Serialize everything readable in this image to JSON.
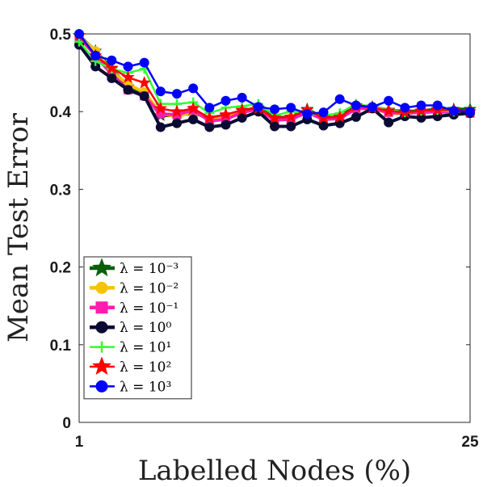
{
  "chart_data": {
    "type": "line",
    "xlabel": "Labelled Nodes (%)",
    "ylabel": "Mean Test Error",
    "xlim": [
      1,
      25
    ],
    "ylim": [
      0,
      0.5
    ],
    "x_tick_labels": [
      "1",
      "25"
    ],
    "y_tick_labels": [
      "0",
      "0.1",
      "0.2",
      "0.3",
      "0.4",
      "0.5"
    ],
    "grid": false,
    "legend_position": "bottom-left",
    "x": [
      1,
      2,
      3,
      4,
      5,
      6,
      7,
      8,
      9,
      10,
      11,
      12,
      13,
      14,
      15,
      16,
      17,
      18,
      19,
      20,
      21,
      22,
      23,
      24,
      25
    ],
    "series": [
      {
        "name": "λ = 10⁻³",
        "color": "#0b5e0b",
        "marker": "star",
        "values": [
          0.498,
          0.478,
          0.455,
          0.432,
          0.423,
          0.395,
          0.395,
          0.398,
          0.392,
          0.395,
          0.401,
          0.405,
          0.392,
          0.393,
          0.403,
          0.392,
          0.393,
          0.408,
          0.406,
          0.402,
          0.4,
          0.401,
          0.403,
          0.403,
          0.403
        ]
      },
      {
        "name": "λ = 10⁻²",
        "color": "#f5c400",
        "marker": "circle",
        "values": [
          0.497,
          0.478,
          0.452,
          0.435,
          0.425,
          0.398,
          0.393,
          0.4,
          0.39,
          0.393,
          0.4,
          0.404,
          0.39,
          0.392,
          0.4,
          0.39,
          0.392,
          0.405,
          0.404,
          0.398,
          0.397,
          0.4,
          0.401,
          0.4,
          0.4
        ]
      },
      {
        "name": "λ = 10⁻¹",
        "color": "#ff1cae",
        "marker": "square",
        "values": [
          0.496,
          0.472,
          0.448,
          0.428,
          0.42,
          0.397,
          0.396,
          0.402,
          0.388,
          0.39,
          0.399,
          0.403,
          0.389,
          0.39,
          0.399,
          0.39,
          0.391,
          0.404,
          0.404,
          0.399,
          0.398,
          0.399,
          0.4,
          0.399,
          0.398
        ]
      },
      {
        "name": "λ = 10⁰",
        "color": "#0a0a33",
        "marker": "circle",
        "values": [
          0.486,
          0.458,
          0.443,
          0.428,
          0.42,
          0.38,
          0.385,
          0.39,
          0.38,
          0.383,
          0.392,
          0.4,
          0.381,
          0.381,
          0.39,
          0.382,
          0.385,
          0.393,
          0.404,
          0.386,
          0.394,
          0.392,
          0.394,
          0.396,
          0.398
        ]
      },
      {
        "name": "λ = 10¹",
        "color": "#33ff33",
        "marker": "plus",
        "values": [
          0.49,
          0.465,
          0.455,
          0.45,
          0.455,
          0.41,
          0.41,
          0.412,
          0.398,
          0.405,
          0.407,
          0.41,
          0.395,
          0.4,
          0.398,
          0.395,
          0.398,
          0.41,
          0.406,
          0.403,
          0.399,
          0.401,
          0.402,
          0.4,
          0.401
        ]
      },
      {
        "name": "λ = 10²",
        "color": "#ff0000",
        "marker": "star",
        "values": [
          0.498,
          0.472,
          0.456,
          0.444,
          0.437,
          0.404,
          0.4,
          0.404,
          0.392,
          0.396,
          0.402,
          0.404,
          0.392,
          0.393,
          0.402,
          0.392,
          0.393,
          0.407,
          0.405,
          0.401,
          0.399,
          0.401,
          0.402,
          0.402,
          0.4
        ]
      },
      {
        "name": "λ = 10³",
        "color": "#0000ff",
        "marker": "circle",
        "values": [
          0.5,
          0.472,
          0.466,
          0.458,
          0.463,
          0.426,
          0.423,
          0.43,
          0.405,
          0.414,
          0.418,
          0.406,
          0.403,
          0.405,
          0.397,
          0.399,
          0.416,
          0.408,
          0.406,
          0.414,
          0.405,
          0.408,
          0.408,
          0.401,
          0.4
        ]
      }
    ]
  }
}
